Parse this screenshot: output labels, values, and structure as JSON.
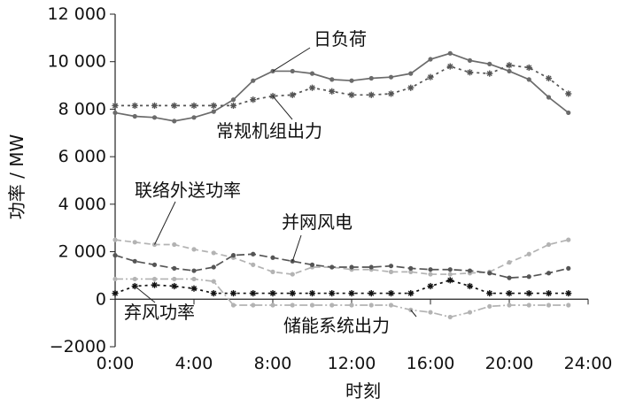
{
  "chart_data": {
    "type": "line",
    "xlabel": "时刻",
    "ylabel": "功率 / MW",
    "ylim": [
      -2000,
      12000
    ],
    "xlim": [
      0,
      24
    ],
    "yticks": [
      {
        "v": -2000,
        "label": "−2000"
      },
      {
        "v": 0,
        "label": "0"
      },
      {
        "v": 2000,
        "label": "2 000"
      },
      {
        "v": 4000,
        "label": "4 000"
      },
      {
        "v": 6000,
        "label": "6 000"
      },
      {
        "v": 8000,
        "label": "8 000"
      },
      {
        "v": 10000,
        "label": "10 000"
      },
      {
        "v": 12000,
        "label": "12 000"
      }
    ],
    "xticks": [
      {
        "v": 0,
        "label": "0:00"
      },
      {
        "v": 4,
        "label": "4:00"
      },
      {
        "v": 8,
        "label": "8:00"
      },
      {
        "v": 12,
        "label": "12:00"
      },
      {
        "v": 16,
        "label": "16:00"
      },
      {
        "v": 20,
        "label": "20:00"
      },
      {
        "v": 24,
        "label": "24:00"
      }
    ],
    "x": [
      0,
      1,
      2,
      3,
      4,
      5,
      6,
      7,
      8,
      9,
      10,
      11,
      12,
      13,
      14,
      15,
      16,
      17,
      18,
      19,
      20,
      21,
      22,
      23
    ],
    "series": [
      {
        "name": "日负荷",
        "color": "#6b6b6b",
        "dash": "",
        "marker": "dot",
        "values": [
          7850,
          7700,
          7650,
          7500,
          7650,
          7900,
          8400,
          9200,
          9600,
          9600,
          9500,
          9250,
          9200,
          9300,
          9350,
          9500,
          10100,
          10350,
          10050,
          9900,
          9600,
          9250,
          8500,
          7850
        ]
      },
      {
        "name": "常规机组出力",
        "color": "#555555",
        "dash": "3,4",
        "marker": "star",
        "values": [
          8150,
          8150,
          8150,
          8150,
          8150,
          8150,
          8150,
          8400,
          8550,
          8600,
          8900,
          8750,
          8600,
          8600,
          8650,
          8900,
          9350,
          9800,
          9550,
          9500,
          9850,
          9750,
          9300,
          8650
        ]
      },
      {
        "name": "联络外送功率",
        "color": "#b3b3b3",
        "dash": "7,4",
        "marker": "dot",
        "values": [
          2500,
          2400,
          2300,
          2300,
          2100,
          1950,
          1750,
          1450,
          1150,
          1050,
          1350,
          1350,
          1250,
          1250,
          1150,
          1150,
          1050,
          1050,
          1100,
          1150,
          1550,
          1900,
          2300,
          2500
        ]
      },
      {
        "name": "并网风电",
        "color": "#555555",
        "dash": "9,4",
        "marker": "dot",
        "values": [
          1850,
          1600,
          1450,
          1300,
          1200,
          1350,
          1850,
          1900,
          1750,
          1600,
          1450,
          1350,
          1350,
          1350,
          1400,
          1300,
          1250,
          1250,
          1200,
          1100,
          900,
          950,
          1100,
          1300
        ]
      },
      {
        "name": "弃风功率",
        "color": "#111111",
        "dash": "3,4",
        "marker": "star",
        "values": [
          250,
          550,
          600,
          550,
          450,
          250,
          250,
          250,
          250,
          250,
          250,
          250,
          250,
          250,
          250,
          250,
          550,
          800,
          550,
          250,
          250,
          250,
          250,
          250
        ]
      },
      {
        "name": "储能系统出力",
        "color": "#b3b3b3",
        "dash": "9,3,2,3",
        "marker": "dot",
        "values": [
          850,
          850,
          850,
          850,
          850,
          750,
          -250,
          -250,
          -250,
          -250,
          -250,
          -250,
          -250,
          -250,
          -250,
          -450,
          -550,
          -750,
          -550,
          -300,
          -250,
          -250,
          -250,
          -250
        ]
      }
    ],
    "annotations": [
      {
        "label": "日负荷",
        "series": 0
      },
      {
        "label": "常规机组出力",
        "series": 1
      },
      {
        "label": "联络外送功率",
        "series": 2
      },
      {
        "label": "并网风电",
        "series": 3
      },
      {
        "label": "弃风功率",
        "series": 4
      },
      {
        "label": "储能系统出力",
        "series": 5
      }
    ]
  }
}
